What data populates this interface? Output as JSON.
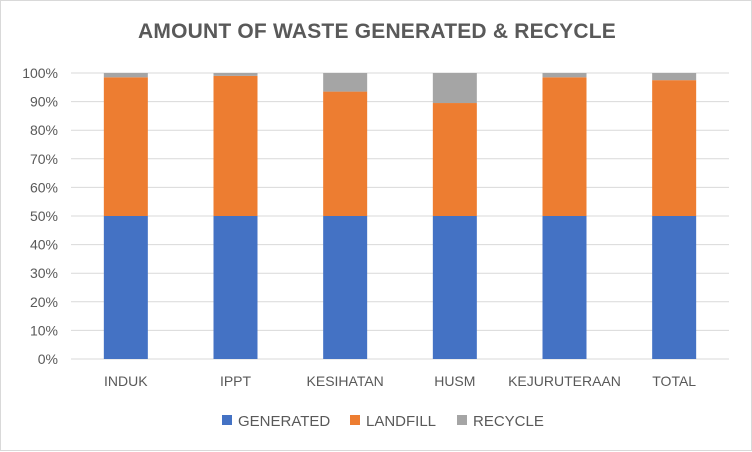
{
  "chart_data": {
    "type": "bar",
    "stacked": "percent",
    "title": "AMOUNT OF WASTE GENERATED & RECYCLE",
    "xlabel": "",
    "ylabel": "",
    "categories": [
      "INDUK",
      "IPPT",
      "KESIHATAN",
      "HUSM",
      "KEJURUTERAAN",
      "TOTAL"
    ],
    "series": [
      {
        "name": "GENERATED",
        "color": "#4472C4",
        "values": [
          50,
          50,
          50,
          50,
          50,
          50
        ]
      },
      {
        "name": "LANDFILL",
        "color": "#ED7D31",
        "values": [
          48.5,
          49,
          43.5,
          39.5,
          48.5,
          47.5
        ]
      },
      {
        "name": "RECYCLE",
        "color": "#A5A5A5",
        "values": [
          1.5,
          1,
          6.5,
          10.5,
          1.5,
          2.5
        ]
      }
    ],
    "yticks": [
      "0%",
      "10%",
      "20%",
      "30%",
      "40%",
      "50%",
      "60%",
      "70%",
      "80%",
      "90%",
      "100%"
    ],
    "ylim": [
      0,
      100
    ],
    "grid": true,
    "legend": "bottom"
  }
}
